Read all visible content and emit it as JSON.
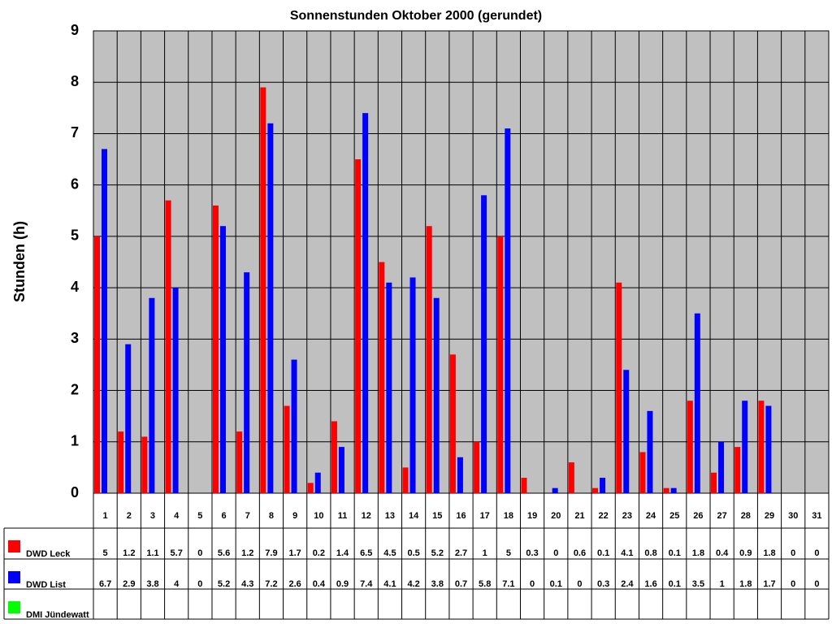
{
  "chart_data": {
    "type": "bar",
    "title": "Sonnenstunden Oktober 2000 (gerundet)",
    "y_label": "Stunden (h)",
    "categories": [
      "1",
      "2",
      "3",
      "4",
      "5",
      "6",
      "7",
      "8",
      "9",
      "10",
      "11",
      "12",
      "13",
      "14",
      "15",
      "16",
      "17",
      "18",
      "19",
      "20",
      "21",
      "22",
      "23",
      "24",
      "25",
      "26",
      "27",
      "28",
      "29",
      "30",
      "31"
    ],
    "series": [
      {
        "name": "DWD Leck",
        "color": "#ff0000",
        "values": [
          5,
          1.2,
          1.1,
          5.7,
          0,
          5.6,
          1.2,
          7.9,
          1.7,
          0.2,
          1.4,
          6.5,
          4.5,
          0.5,
          5.2,
          2.7,
          1,
          5,
          0.3,
          0,
          0.6,
          0.1,
          4.1,
          0.8,
          0.1,
          1.8,
          0.4,
          0.9,
          1.8,
          0,
          0
        ]
      },
      {
        "name": "DWD List",
        "color": "#0000ff",
        "values": [
          6.7,
          2.9,
          3.8,
          4,
          0,
          5.2,
          4.3,
          7.2,
          2.6,
          0.4,
          0.9,
          7.4,
          4.1,
          4.2,
          3.8,
          0.7,
          5.8,
          7.1,
          0,
          0.1,
          0,
          0.3,
          2.4,
          1.6,
          0.1,
          3.5,
          1,
          1.8,
          1.7,
          0,
          0
        ]
      },
      {
        "name": "DMI Jündewatt",
        "color": "#00ff00",
        "values": [
          null,
          null,
          null,
          null,
          null,
          null,
          null,
          null,
          null,
          null,
          null,
          null,
          null,
          null,
          null,
          null,
          null,
          null,
          null,
          null,
          null,
          null,
          null,
          null,
          null,
          null,
          null,
          null,
          null,
          null,
          null
        ]
      }
    ],
    "ylim": [
      0,
      9
    ],
    "yticks": [
      0,
      1,
      2,
      3,
      4,
      5,
      6,
      7,
      8,
      9
    ],
    "grid": true,
    "background": "#c0c0c0"
  }
}
